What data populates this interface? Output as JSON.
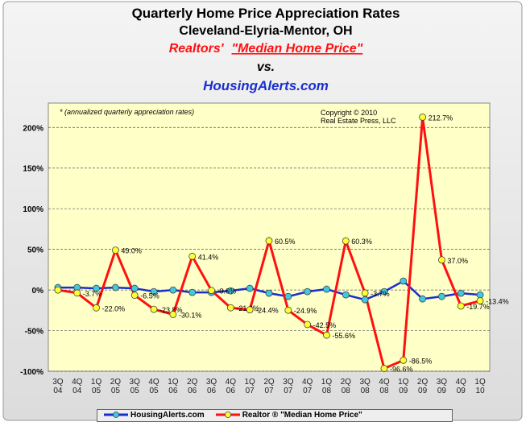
{
  "chart_data": {
    "type": "line",
    "title": "Quarterly Home Price Appreciation Rates",
    "subtitle": "Cleveland-Elyria-Mentor, OH",
    "series_title_1": "Realtors'",
    "series_title_2": "\"Median Home Price\"",
    "vs": "vs.",
    "series_title_3": "HousingAlerts.com",
    "note": "* (annualized quarterly appreciation rates)",
    "copyright": "Copyright © 2010\nReal Estate Press, LLC",
    "categories": [
      "3Q\n04",
      "4Q\n04",
      "1Q\n05",
      "2Q\n05",
      "3Q\n05",
      "4Q\n05",
      "1Q\n06",
      "2Q\n06",
      "3Q\n06",
      "4Q\n06",
      "1Q\n07",
      "2Q\n07",
      "3Q\n07",
      "4Q\n07",
      "1Q\n08",
      "2Q\n08",
      "3Q\n08",
      "4Q\n08",
      "1Q\n09",
      "2Q\n09",
      "3Q\n09",
      "4Q\n09",
      "1Q\n10"
    ],
    "series": [
      {
        "name": "HousingAlerts.com",
        "color": "#1a2fd0",
        "marker_color": "#40c8e0",
        "values": [
          3,
          3,
          2,
          3,
          2,
          -2,
          0,
          -3,
          -3,
          -1,
          2,
          -4,
          -8,
          -2,
          1,
          -6,
          -12,
          -2,
          11,
          -11,
          -8,
          -4,
          -6
        ]
      },
      {
        "name": "Realtor ® \"Median Home Price\"",
        "color": "#ff1010",
        "marker_color": "#ffff30",
        "values": [
          0,
          -3.7,
          -22.0,
          49.0,
          -6.5,
          -23.8,
          -30.1,
          41.4,
          -0.6,
          -21.9,
          -24.4,
          60.5,
          -24.9,
          -42.5,
          -55.6,
          60.3,
          -3.7,
          -96.6,
          -86.5,
          212.7,
          37.0,
          -19.7,
          -13.4
        ],
        "value_labels": [
          null,
          "-3.7%",
          "-22.0%",
          "49.0%",
          "-6.5%",
          "-23.8%",
          "-30.1%",
          "41.4%",
          "-0.6%",
          "-21.9%",
          "-24.4%",
          "60.5%",
          "-24.9%",
          "-42.5%",
          "-55.6%",
          "60.3%",
          "-3.7%",
          "-96.6%",
          "-86.5%",
          "212.7%",
          "37.0%",
          "-19.7%",
          "-13.4%"
        ]
      }
    ],
    "ylim": [
      -100,
      230
    ],
    "yticks": [
      {
        "value": -100,
        "label": "-100%"
      },
      {
        "value": -50,
        "label": "-50%"
      },
      {
        "value": 0,
        "label": "0%"
      },
      {
        "value": 50,
        "label": "50%"
      },
      {
        "value": 100,
        "label": "100%"
      },
      {
        "value": 150,
        "label": "150%"
      },
      {
        "value": 200,
        "label": "200%"
      }
    ],
    "grid": true
  }
}
